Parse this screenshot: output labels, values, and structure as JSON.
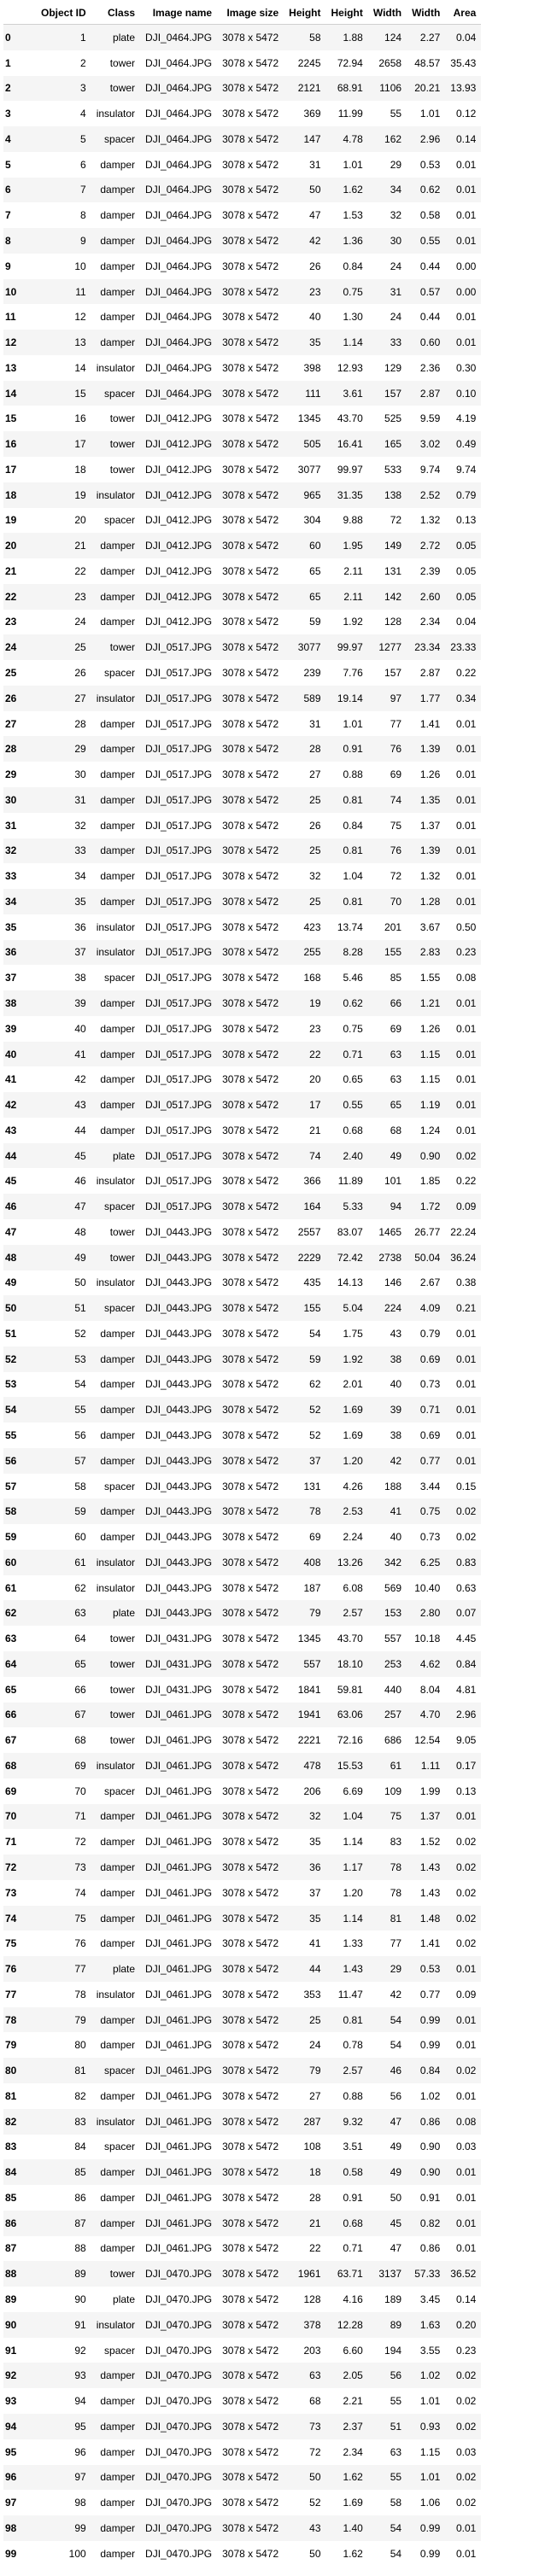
{
  "table": {
    "columns": [
      "",
      "Object ID",
      "Class",
      "Image name",
      "Image size",
      "Height",
      "Width",
      "Area"
    ],
    "columns_full": [
      "",
      "Object ID",
      "Class",
      "Image name",
      "Image size",
      "Height",
      "Height",
      "Width",
      "Width",
      "Area"
    ],
    "rows": [
      [
        "0",
        "1",
        "plate",
        "DJI_0464.JPG",
        "3078 x 5472",
        "58",
        "1.88",
        "124",
        "2.27",
        "0.04"
      ],
      [
        "1",
        "2",
        "tower",
        "DJI_0464.JPG",
        "3078 x 5472",
        "2245",
        "72.94",
        "2658",
        "48.57",
        "35.43"
      ],
      [
        "2",
        "3",
        "tower",
        "DJI_0464.JPG",
        "3078 x 5472",
        "2121",
        "68.91",
        "1106",
        "20.21",
        "13.93"
      ],
      [
        "3",
        "4",
        "insulator",
        "DJI_0464.JPG",
        "3078 x 5472",
        "369",
        "11.99",
        "55",
        "1.01",
        "0.12"
      ],
      [
        "4",
        "5",
        "spacer",
        "DJI_0464.JPG",
        "3078 x 5472",
        "147",
        "4.78",
        "162",
        "2.96",
        "0.14"
      ],
      [
        "5",
        "6",
        "damper",
        "DJI_0464.JPG",
        "3078 x 5472",
        "31",
        "1.01",
        "29",
        "0.53",
        "0.01"
      ],
      [
        "6",
        "7",
        "damper",
        "DJI_0464.JPG",
        "3078 x 5472",
        "50",
        "1.62",
        "34",
        "0.62",
        "0.01"
      ],
      [
        "7",
        "8",
        "damper",
        "DJI_0464.JPG",
        "3078 x 5472",
        "47",
        "1.53",
        "32",
        "0.58",
        "0.01"
      ],
      [
        "8",
        "9",
        "damper",
        "DJI_0464.JPG",
        "3078 x 5472",
        "42",
        "1.36",
        "30",
        "0.55",
        "0.01"
      ],
      [
        "9",
        "10",
        "damper",
        "DJI_0464.JPG",
        "3078 x 5472",
        "26",
        "0.84",
        "24",
        "0.44",
        "0.00"
      ],
      [
        "10",
        "11",
        "damper",
        "DJI_0464.JPG",
        "3078 x 5472",
        "23",
        "0.75",
        "31",
        "0.57",
        "0.00"
      ],
      [
        "11",
        "12",
        "damper",
        "DJI_0464.JPG",
        "3078 x 5472",
        "40",
        "1.30",
        "24",
        "0.44",
        "0.01"
      ],
      [
        "12",
        "13",
        "damper",
        "DJI_0464.JPG",
        "3078 x 5472",
        "35",
        "1.14",
        "33",
        "0.60",
        "0.01"
      ],
      [
        "13",
        "14",
        "insulator",
        "DJI_0464.JPG",
        "3078 x 5472",
        "398",
        "12.93",
        "129",
        "2.36",
        "0.30"
      ],
      [
        "14",
        "15",
        "spacer",
        "DJI_0464.JPG",
        "3078 x 5472",
        "111",
        "3.61",
        "157",
        "2.87",
        "0.10"
      ],
      [
        "15",
        "16",
        "tower",
        "DJI_0412.JPG",
        "3078 x 5472",
        "1345",
        "43.70",
        "525",
        "9.59",
        "4.19"
      ],
      [
        "16",
        "17",
        "tower",
        "DJI_0412.JPG",
        "3078 x 5472",
        "505",
        "16.41",
        "165",
        "3.02",
        "0.49"
      ],
      [
        "17",
        "18",
        "tower",
        "DJI_0412.JPG",
        "3078 x 5472",
        "3077",
        "99.97",
        "533",
        "9.74",
        "9.74"
      ],
      [
        "18",
        "19",
        "insulator",
        "DJI_0412.JPG",
        "3078 x 5472",
        "965",
        "31.35",
        "138",
        "2.52",
        "0.79"
      ],
      [
        "19",
        "20",
        "spacer",
        "DJI_0412.JPG",
        "3078 x 5472",
        "304",
        "9.88",
        "72",
        "1.32",
        "0.13"
      ],
      [
        "20",
        "21",
        "damper",
        "DJI_0412.JPG",
        "3078 x 5472",
        "60",
        "1.95",
        "149",
        "2.72",
        "0.05"
      ],
      [
        "21",
        "22",
        "damper",
        "DJI_0412.JPG",
        "3078 x 5472",
        "65",
        "2.11",
        "131",
        "2.39",
        "0.05"
      ],
      [
        "22",
        "23",
        "damper",
        "DJI_0412.JPG",
        "3078 x 5472",
        "65",
        "2.11",
        "142",
        "2.60",
        "0.05"
      ],
      [
        "23",
        "24",
        "damper",
        "DJI_0412.JPG",
        "3078 x 5472",
        "59",
        "1.92",
        "128",
        "2.34",
        "0.04"
      ],
      [
        "24",
        "25",
        "tower",
        "DJI_0517.JPG",
        "3078 x 5472",
        "3077",
        "99.97",
        "1277",
        "23.34",
        "23.33"
      ],
      [
        "25",
        "26",
        "spacer",
        "DJI_0517.JPG",
        "3078 x 5472",
        "239",
        "7.76",
        "157",
        "2.87",
        "0.22"
      ],
      [
        "26",
        "27",
        "insulator",
        "DJI_0517.JPG",
        "3078 x 5472",
        "589",
        "19.14",
        "97",
        "1.77",
        "0.34"
      ],
      [
        "27",
        "28",
        "damper",
        "DJI_0517.JPG",
        "3078 x 5472",
        "31",
        "1.01",
        "77",
        "1.41",
        "0.01"
      ],
      [
        "28",
        "29",
        "damper",
        "DJI_0517.JPG",
        "3078 x 5472",
        "28",
        "0.91",
        "76",
        "1.39",
        "0.01"
      ],
      [
        "29",
        "30",
        "damper",
        "DJI_0517.JPG",
        "3078 x 5472",
        "27",
        "0.88",
        "69",
        "1.26",
        "0.01"
      ],
      [
        "30",
        "31",
        "damper",
        "DJI_0517.JPG",
        "3078 x 5472",
        "25",
        "0.81",
        "74",
        "1.35",
        "0.01"
      ],
      [
        "31",
        "32",
        "damper",
        "DJI_0517.JPG",
        "3078 x 5472",
        "26",
        "0.84",
        "75",
        "1.37",
        "0.01"
      ],
      [
        "32",
        "33",
        "damper",
        "DJI_0517.JPG",
        "3078 x 5472",
        "25",
        "0.81",
        "76",
        "1.39",
        "0.01"
      ],
      [
        "33",
        "34",
        "damper",
        "DJI_0517.JPG",
        "3078 x 5472",
        "32",
        "1.04",
        "72",
        "1.32",
        "0.01"
      ],
      [
        "34",
        "35",
        "damper",
        "DJI_0517.JPG",
        "3078 x 5472",
        "25",
        "0.81",
        "70",
        "1.28",
        "0.01"
      ],
      [
        "35",
        "36",
        "insulator",
        "DJI_0517.JPG",
        "3078 x 5472",
        "423",
        "13.74",
        "201",
        "3.67",
        "0.50"
      ],
      [
        "36",
        "37",
        "insulator",
        "DJI_0517.JPG",
        "3078 x 5472",
        "255",
        "8.28",
        "155",
        "2.83",
        "0.23"
      ],
      [
        "37",
        "38",
        "spacer",
        "DJI_0517.JPG",
        "3078 x 5472",
        "168",
        "5.46",
        "85",
        "1.55",
        "0.08"
      ],
      [
        "38",
        "39",
        "damper",
        "DJI_0517.JPG",
        "3078 x 5472",
        "19",
        "0.62",
        "66",
        "1.21",
        "0.01"
      ],
      [
        "39",
        "40",
        "damper",
        "DJI_0517.JPG",
        "3078 x 5472",
        "23",
        "0.75",
        "69",
        "1.26",
        "0.01"
      ],
      [
        "40",
        "41",
        "damper",
        "DJI_0517.JPG",
        "3078 x 5472",
        "22",
        "0.71",
        "63",
        "1.15",
        "0.01"
      ],
      [
        "41",
        "42",
        "damper",
        "DJI_0517.JPG",
        "3078 x 5472",
        "20",
        "0.65",
        "63",
        "1.15",
        "0.01"
      ],
      [
        "42",
        "43",
        "damper",
        "DJI_0517.JPG",
        "3078 x 5472",
        "17",
        "0.55",
        "65",
        "1.19",
        "0.01"
      ],
      [
        "43",
        "44",
        "damper",
        "DJI_0517.JPG",
        "3078 x 5472",
        "21",
        "0.68",
        "68",
        "1.24",
        "0.01"
      ],
      [
        "44",
        "45",
        "plate",
        "DJI_0517.JPG",
        "3078 x 5472",
        "74",
        "2.40",
        "49",
        "0.90",
        "0.02"
      ],
      [
        "45",
        "46",
        "insulator",
        "DJI_0517.JPG",
        "3078 x 5472",
        "366",
        "11.89",
        "101",
        "1.85",
        "0.22"
      ],
      [
        "46",
        "47",
        "spacer",
        "DJI_0517.JPG",
        "3078 x 5472",
        "164",
        "5.33",
        "94",
        "1.72",
        "0.09"
      ],
      [
        "47",
        "48",
        "tower",
        "DJI_0443.JPG",
        "3078 x 5472",
        "2557",
        "83.07",
        "1465",
        "26.77",
        "22.24"
      ],
      [
        "48",
        "49",
        "tower",
        "DJI_0443.JPG",
        "3078 x 5472",
        "2229",
        "72.42",
        "2738",
        "50.04",
        "36.24"
      ],
      [
        "49",
        "50",
        "insulator",
        "DJI_0443.JPG",
        "3078 x 5472",
        "435",
        "14.13",
        "146",
        "2.67",
        "0.38"
      ],
      [
        "50",
        "51",
        "spacer",
        "DJI_0443.JPG",
        "3078 x 5472",
        "155",
        "5.04",
        "224",
        "4.09",
        "0.21"
      ],
      [
        "51",
        "52",
        "damper",
        "DJI_0443.JPG",
        "3078 x 5472",
        "54",
        "1.75",
        "43",
        "0.79",
        "0.01"
      ],
      [
        "52",
        "53",
        "damper",
        "DJI_0443.JPG",
        "3078 x 5472",
        "59",
        "1.92",
        "38",
        "0.69",
        "0.01"
      ],
      [
        "53",
        "54",
        "damper",
        "DJI_0443.JPG",
        "3078 x 5472",
        "62",
        "2.01",
        "40",
        "0.73",
        "0.01"
      ],
      [
        "54",
        "55",
        "damper",
        "DJI_0443.JPG",
        "3078 x 5472",
        "52",
        "1.69",
        "39",
        "0.71",
        "0.01"
      ],
      [
        "55",
        "56",
        "damper",
        "DJI_0443.JPG",
        "3078 x 5472",
        "52",
        "1.69",
        "38",
        "0.69",
        "0.01"
      ],
      [
        "56",
        "57",
        "damper",
        "DJI_0443.JPG",
        "3078 x 5472",
        "37",
        "1.20",
        "42",
        "0.77",
        "0.01"
      ],
      [
        "57",
        "58",
        "spacer",
        "DJI_0443.JPG",
        "3078 x 5472",
        "131",
        "4.26",
        "188",
        "3.44",
        "0.15"
      ],
      [
        "58",
        "59",
        "damper",
        "DJI_0443.JPG",
        "3078 x 5472",
        "78",
        "2.53",
        "41",
        "0.75",
        "0.02"
      ],
      [
        "59",
        "60",
        "damper",
        "DJI_0443.JPG",
        "3078 x 5472",
        "69",
        "2.24",
        "40",
        "0.73",
        "0.02"
      ],
      [
        "60",
        "61",
        "insulator",
        "DJI_0443.JPG",
        "3078 x 5472",
        "408",
        "13.26",
        "342",
        "6.25",
        "0.83"
      ],
      [
        "61",
        "62",
        "insulator",
        "DJI_0443.JPG",
        "3078 x 5472",
        "187",
        "6.08",
        "569",
        "10.40",
        "0.63"
      ],
      [
        "62",
        "63",
        "plate",
        "DJI_0443.JPG",
        "3078 x 5472",
        "79",
        "2.57",
        "153",
        "2.80",
        "0.07"
      ],
      [
        "63",
        "64",
        "tower",
        "DJI_0431.JPG",
        "3078 x 5472",
        "1345",
        "43.70",
        "557",
        "10.18",
        "4.45"
      ],
      [
        "64",
        "65",
        "tower",
        "DJI_0431.JPG",
        "3078 x 5472",
        "557",
        "18.10",
        "253",
        "4.62",
        "0.84"
      ],
      [
        "65",
        "66",
        "tower",
        "DJI_0431.JPG",
        "3078 x 5472",
        "1841",
        "59.81",
        "440",
        "8.04",
        "4.81"
      ],
      [
        "66",
        "67",
        "tower",
        "DJI_0461.JPG",
        "3078 x 5472",
        "1941",
        "63.06",
        "257",
        "4.70",
        "2.96"
      ],
      [
        "67",
        "68",
        "tower",
        "DJI_0461.JPG",
        "3078 x 5472",
        "2221",
        "72.16",
        "686",
        "12.54",
        "9.05"
      ],
      [
        "68",
        "69",
        "insulator",
        "DJI_0461.JPG",
        "3078 x 5472",
        "478",
        "15.53",
        "61",
        "1.11",
        "0.17"
      ],
      [
        "69",
        "70",
        "spacer",
        "DJI_0461.JPG",
        "3078 x 5472",
        "206",
        "6.69",
        "109",
        "1.99",
        "0.13"
      ],
      [
        "70",
        "71",
        "damper",
        "DJI_0461.JPG",
        "3078 x 5472",
        "32",
        "1.04",
        "75",
        "1.37",
        "0.01"
      ],
      [
        "71",
        "72",
        "damper",
        "DJI_0461.JPG",
        "3078 x 5472",
        "35",
        "1.14",
        "83",
        "1.52",
        "0.02"
      ],
      [
        "72",
        "73",
        "damper",
        "DJI_0461.JPG",
        "3078 x 5472",
        "36",
        "1.17",
        "78",
        "1.43",
        "0.02"
      ],
      [
        "73",
        "74",
        "damper",
        "DJI_0461.JPG",
        "3078 x 5472",
        "37",
        "1.20",
        "78",
        "1.43",
        "0.02"
      ],
      [
        "74",
        "75",
        "damper",
        "DJI_0461.JPG",
        "3078 x 5472",
        "35",
        "1.14",
        "81",
        "1.48",
        "0.02"
      ],
      [
        "75",
        "76",
        "damper",
        "DJI_0461.JPG",
        "3078 x 5472",
        "41",
        "1.33",
        "77",
        "1.41",
        "0.02"
      ],
      [
        "76",
        "77",
        "plate",
        "DJI_0461.JPG",
        "3078 x 5472",
        "44",
        "1.43",
        "29",
        "0.53",
        "0.01"
      ],
      [
        "77",
        "78",
        "insulator",
        "DJI_0461.JPG",
        "3078 x 5472",
        "353",
        "11.47",
        "42",
        "0.77",
        "0.09"
      ],
      [
        "78",
        "79",
        "damper",
        "DJI_0461.JPG",
        "3078 x 5472",
        "25",
        "0.81",
        "54",
        "0.99",
        "0.01"
      ],
      [
        "79",
        "80",
        "damper",
        "DJI_0461.JPG",
        "3078 x 5472",
        "24",
        "0.78",
        "54",
        "0.99",
        "0.01"
      ],
      [
        "80",
        "81",
        "spacer",
        "DJI_0461.JPG",
        "3078 x 5472",
        "79",
        "2.57",
        "46",
        "0.84",
        "0.02"
      ],
      [
        "81",
        "82",
        "damper",
        "DJI_0461.JPG",
        "3078 x 5472",
        "27",
        "0.88",
        "56",
        "1.02",
        "0.01"
      ],
      [
        "82",
        "83",
        "insulator",
        "DJI_0461.JPG",
        "3078 x 5472",
        "287",
        "9.32",
        "47",
        "0.86",
        "0.08"
      ],
      [
        "83",
        "84",
        "spacer",
        "DJI_0461.JPG",
        "3078 x 5472",
        "108",
        "3.51",
        "49",
        "0.90",
        "0.03"
      ],
      [
        "84",
        "85",
        "damper",
        "DJI_0461.JPG",
        "3078 x 5472",
        "18",
        "0.58",
        "49",
        "0.90",
        "0.01"
      ],
      [
        "85",
        "86",
        "damper",
        "DJI_0461.JPG",
        "3078 x 5472",
        "28",
        "0.91",
        "50",
        "0.91",
        "0.01"
      ],
      [
        "86",
        "87",
        "damper",
        "DJI_0461.JPG",
        "3078 x 5472",
        "21",
        "0.68",
        "45",
        "0.82",
        "0.01"
      ],
      [
        "87",
        "88",
        "damper",
        "DJI_0461.JPG",
        "3078 x 5472",
        "22",
        "0.71",
        "47",
        "0.86",
        "0.01"
      ],
      [
        "88",
        "89",
        "tower",
        "DJI_0470.JPG",
        "3078 x 5472",
        "1961",
        "63.71",
        "3137",
        "57.33",
        "36.52"
      ],
      [
        "89",
        "90",
        "plate",
        "DJI_0470.JPG",
        "3078 x 5472",
        "128",
        "4.16",
        "189",
        "3.45",
        "0.14"
      ],
      [
        "90",
        "91",
        "insulator",
        "DJI_0470.JPG",
        "3078 x 5472",
        "378",
        "12.28",
        "89",
        "1.63",
        "0.20"
      ],
      [
        "91",
        "92",
        "spacer",
        "DJI_0470.JPG",
        "3078 x 5472",
        "203",
        "6.60",
        "194",
        "3.55",
        "0.23"
      ],
      [
        "92",
        "93",
        "damper",
        "DJI_0470.JPG",
        "3078 x 5472",
        "63",
        "2.05",
        "56",
        "1.02",
        "0.02"
      ],
      [
        "93",
        "94",
        "damper",
        "DJI_0470.JPG",
        "3078 x 5472",
        "68",
        "2.21",
        "55",
        "1.01",
        "0.02"
      ],
      [
        "94",
        "95",
        "damper",
        "DJI_0470.JPG",
        "3078 x 5472",
        "73",
        "2.37",
        "51",
        "0.93",
        "0.02"
      ],
      [
        "95",
        "96",
        "damper",
        "DJI_0470.JPG",
        "3078 x 5472",
        "72",
        "2.34",
        "63",
        "1.15",
        "0.03"
      ],
      [
        "96",
        "97",
        "damper",
        "DJI_0470.JPG",
        "3078 x 5472",
        "50",
        "1.62",
        "55",
        "1.01",
        "0.02"
      ],
      [
        "97",
        "98",
        "damper",
        "DJI_0470.JPG",
        "3078 x 5472",
        "52",
        "1.69",
        "58",
        "1.06",
        "0.02"
      ],
      [
        "98",
        "99",
        "damper",
        "DJI_0470.JPG",
        "3078 x 5472",
        "43",
        "1.40",
        "54",
        "0.99",
        "0.01"
      ],
      [
        "99",
        "100",
        "damper",
        "DJI_0470.JPG",
        "3078 x 5472",
        "50",
        "1.62",
        "54",
        "0.99",
        "0.01"
      ]
    ]
  }
}
